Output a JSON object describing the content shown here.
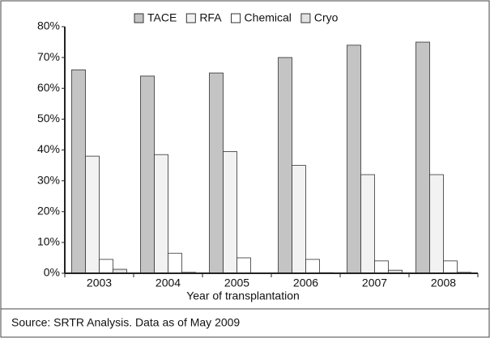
{
  "chart_data": {
    "type": "bar",
    "x_label": "Year of transplantation",
    "source": "Source: SRTR Analysis. Data as of May 2009",
    "categories": [
      "2003",
      "2004",
      "2005",
      "2006",
      "2007",
      "2008"
    ],
    "series": [
      {
        "name": "TACE",
        "color": "#c4c4c4",
        "values": [
          66,
          64,
          65,
          70,
          74,
          75
        ]
      },
      {
        "name": "RFA",
        "color": "#f2f2f2",
        "values": [
          38,
          38.5,
          39.5,
          35,
          32,
          32
        ]
      },
      {
        "name": "Chemical",
        "color": "#ffffff",
        "values": [
          4.5,
          6.5,
          5,
          4.5,
          4,
          4
        ]
      },
      {
        "name": "Cryo",
        "color": "#e2e2e2",
        "values": [
          1.3,
          0.3,
          0,
          0.2,
          1,
          0.3
        ]
      }
    ],
    "ylim": [
      0,
      80
    ],
    "yticks": [
      {
        "value": 0,
        "label": "0%"
      },
      {
        "value": 10,
        "label": "10%"
      },
      {
        "value": 20,
        "label": "20%"
      },
      {
        "value": 30,
        "label": "30%"
      },
      {
        "value": 40,
        "label": "40%"
      },
      {
        "value": 50,
        "label": "50%"
      },
      {
        "value": 60,
        "label": "60%"
      },
      {
        "value": 70,
        "label": "70%"
      },
      {
        "value": 80,
        "label": "80%"
      }
    ],
    "legend": "top"
  }
}
